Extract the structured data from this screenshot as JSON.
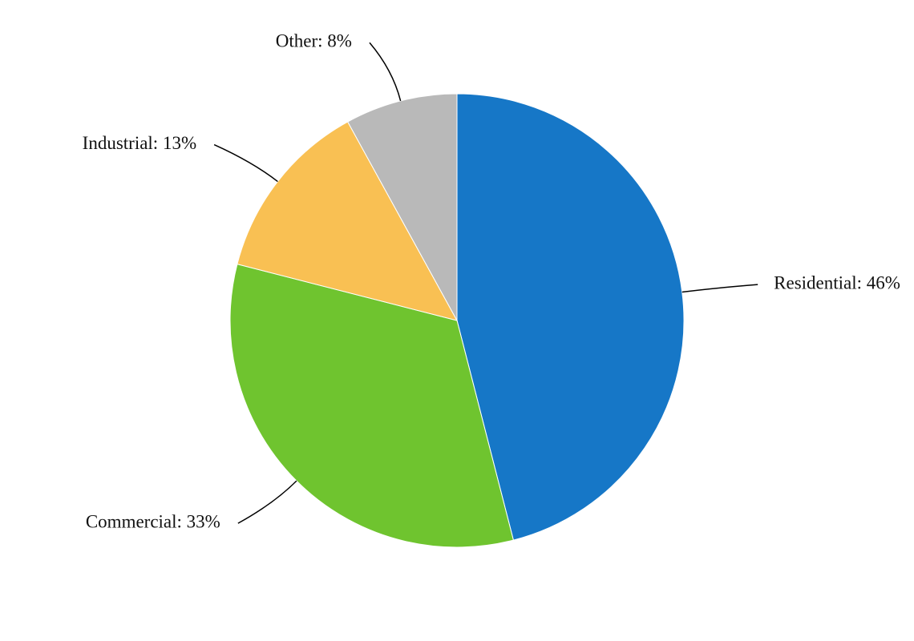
{
  "chart_data": {
    "type": "pie",
    "values": [
      46,
      33,
      13,
      8
    ],
    "value_labels": [
      "Residential: 46%",
      "Commercial: 33%",
      "Industrial: 13%",
      "Other: 8%"
    ],
    "colors": [
      "#1677c7",
      "#6fc42f",
      "#f9c053",
      "#b9b9b9"
    ]
  }
}
